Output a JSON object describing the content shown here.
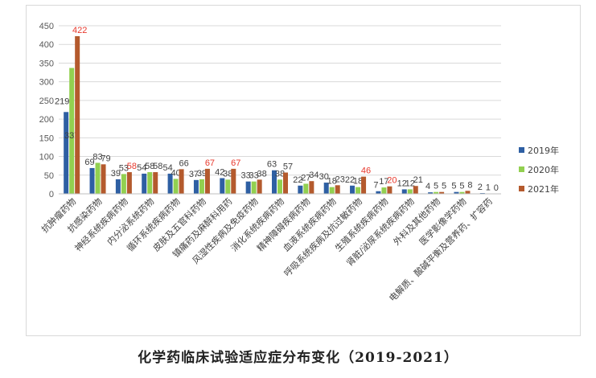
{
  "caption": "化学药临床试验适应症分布变化（2019-2021）",
  "chart_data": {
    "type": "bar",
    "title": "",
    "xlabel": "",
    "ylabel": "",
    "ylim": [
      0,
      450
    ],
    "yticks": [
      0,
      50,
      100,
      150,
      200,
      250,
      300,
      350,
      400,
      450
    ],
    "grid": true,
    "legend_position": "right",
    "categories": [
      "抗肿瘤药物",
      "抗感染药物",
      "神经系统疾病药物",
      "内分泌系统药物",
      "循环系统疾病药物",
      "皮肤及五官科药物",
      "镇痛药及麻醉科用药",
      "风湿性疾病及免疫药物",
      "消化系统疾病药物",
      "精神障碍疾病药物",
      "血液系统疾病药物",
      "呼吸系统疾病及抗过敏药物",
      "生殖系统疾病药物",
      "肾脏/泌尿系统疾病药物",
      "外科及其他药物",
      "医学影像学药物",
      "电解质、酸碱平衡及营养药、扩容药"
    ],
    "series": [
      {
        "name": "2019年",
        "color": "#2e5fa3",
        "values": [
          219,
          69,
          39,
          54,
          54,
          37,
          42,
          33,
          63,
          22,
          30,
          22,
          7,
          12,
          4,
          5,
          2
        ]
      },
      {
        "name": "2020年",
        "color": "#92d050",
        "values": [
          337,
          83,
          53,
          58,
          40,
          39,
          38,
          33,
          38,
          27,
          18,
          18,
          17,
          12,
          5,
          5,
          1
        ]
      },
      {
        "name": "2021年",
        "color": "#b45a2d",
        "values": [
          422,
          79,
          58,
          58,
          66,
          67,
          67,
          38,
          57,
          34,
          23,
          46,
          20,
          21,
          5,
          8,
          0
        ]
      }
    ],
    "highlight_color": "#e8382c",
    "highlighted_labels": [
      [
        0,
        2
      ],
      [
        2,
        2
      ],
      [
        5,
        2
      ],
      [
        6,
        2
      ],
      [
        11,
        2
      ],
      [
        12,
        2
      ]
    ]
  }
}
